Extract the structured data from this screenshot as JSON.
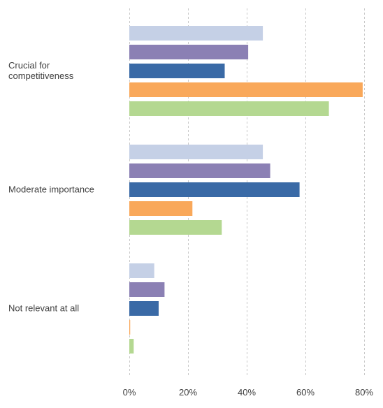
{
  "chart_data": {
    "type": "bar",
    "orientation": "horizontal",
    "title": "",
    "xlabel": "",
    "ylabel": "",
    "xlim": [
      0,
      80
    ],
    "ticks": [
      {
        "value": 0,
        "label": "0%"
      },
      {
        "value": 20,
        "label": "20%"
      },
      {
        "value": 40,
        "label": "40%"
      },
      {
        "value": 60,
        "label": "60%"
      },
      {
        "value": 80,
        "label": "80%"
      }
    ],
    "grid": true,
    "legend": "none",
    "categories": [
      [
        "Crucial for",
        "competitiveness"
      ],
      [
        "Moderate importance"
      ],
      [
        "Not relevant at all"
      ]
    ],
    "series": [
      {
        "color": "#c5d0e6",
        "values": [
          45.5,
          45.5,
          8.5
        ]
      },
      {
        "color": "#8b80b4",
        "values": [
          40.5,
          48.0,
          12.0
        ]
      },
      {
        "color": "#3a6aa6",
        "values": [
          32.5,
          58.0,
          10.0
        ]
      },
      {
        "color": "#f9a85a",
        "values": [
          79.5,
          21.5,
          0.3
        ]
      },
      {
        "color": "#b4d891",
        "values": [
          68.0,
          31.5,
          1.5
        ]
      }
    ]
  }
}
